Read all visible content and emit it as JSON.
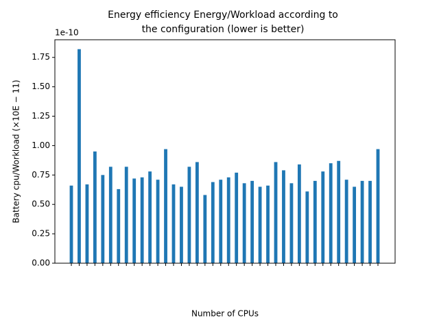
{
  "chart_data": {
    "type": "bar",
    "title_lines": [
      "Energy efficiency Energy/Workload according to",
      "the configuration (lower is better)"
    ],
    "xlabel": "Number of CPUs",
    "ylabel": "Battery cpu/Workload (×10E − 11)",
    "y_offset_label": "1e-10",
    "categories": [
      null,
      null,
      null,
      null,
      null,
      null,
      null,
      null,
      null,
      null,
      null,
      null,
      null,
      null,
      null,
      null,
      null,
      null,
      null,
      null,
      null,
      null,
      null,
      null,
      null,
      null,
      null,
      null,
      null,
      null,
      null,
      null,
      null,
      null,
      null,
      null,
      null,
      null,
      null,
      null
    ],
    "values": [
      0.66,
      1.82,
      0.67,
      0.95,
      0.75,
      0.82,
      0.63,
      0.82,
      0.72,
      0.73,
      0.78,
      0.71,
      0.97,
      0.67,
      0.65,
      0.82,
      0.86,
      0.58,
      0.69,
      0.71,
      0.73,
      0.77,
      0.68,
      0.7,
      0.65,
      0.66,
      0.86,
      0.79,
      0.68,
      0.84,
      0.61,
      0.7,
      0.78,
      0.85,
      0.87,
      0.71,
      0.65,
      0.7,
      0.7,
      0.97
    ],
    "color": "#1f77b4",
    "ylim": [
      0,
      1.9
    ],
    "yticks": [
      {
        "value": 0,
        "label": "0.00"
      },
      {
        "value": 0.25,
        "label": "0.25"
      },
      {
        "value": 0.5,
        "label": "0.50"
      },
      {
        "value": 0.75,
        "label": "0.75"
      },
      {
        "value": 1,
        "label": "1.00"
      },
      {
        "value": 1.25,
        "label": "1.25"
      },
      {
        "value": 1.5,
        "label": "1.50"
      },
      {
        "value": 1.75,
        "label": "1.75"
      }
    ],
    "grid": false
  }
}
